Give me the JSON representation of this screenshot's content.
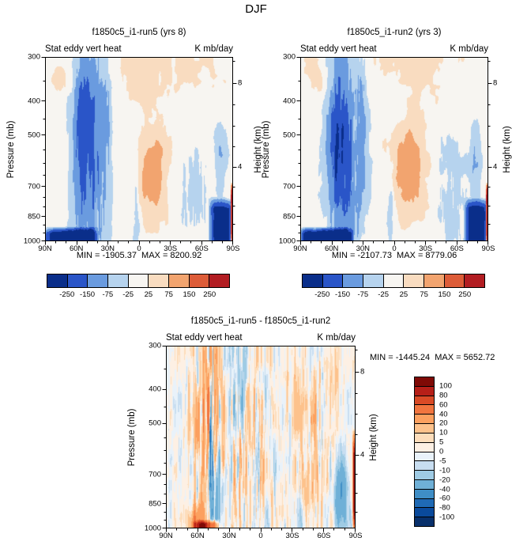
{
  "title": "DJF",
  "chart_data": [
    {
      "type": "heatmap",
      "id": "run5",
      "title": "f1850c5_i1-run5 (yrs 8)",
      "field_label": "Stat eddy vert heat",
      "units_label": "K mb/day",
      "stats": "MIN = -1905.37  MAX = 8200.92",
      "min": -1905.37,
      "max": 8200.92,
      "x_tick_labels": [
        "90N",
        "60N",
        "30N",
        "0",
        "30S",
        "60S",
        "90S"
      ],
      "x_range_deg": [
        90,
        -90
      ],
      "x_major_step_deg": 30,
      "x_minor_step_deg": 10,
      "ylabel": "Pressure (mb)",
      "y_scale": "log",
      "y_range_mb": [
        300,
        1000
      ],
      "y_ticks_mb": [
        300,
        400,
        500,
        700,
        850,
        1000
      ],
      "y_minor_mb": [
        350,
        450,
        550,
        600,
        650,
        750,
        800,
        900,
        950
      ],
      "y2label": "Height (km)",
      "y2_ticks_km": [
        8,
        4
      ],
      "y2_minor_km": [
        1,
        2,
        3,
        5,
        6,
        7,
        9
      ],
      "colorbar": {
        "orientation": "horizontal",
        "levels": [
          -250,
          -150,
          -75,
          -25,
          25,
          75,
          150,
          250
        ],
        "labels": [
          "-250",
          "-150",
          "-75",
          "-25",
          "25",
          "75",
          "150",
          "250"
        ],
        "colors": [
          "#0a2e8a",
          "#2a55c8",
          "#6a9bdf",
          "#b6d3ee",
          "#f7f5f1",
          "#f9dcc0",
          "#f2a46f",
          "#dd5c38",
          "#b21d22"
        ]
      },
      "seed": 3.7,
      "amp_scale": 1.0,
      "features": [
        {
          "type": "noise",
          "amp": 26,
          "sx": 6,
          "sy": 4,
          "bias": 5
        },
        {
          "type": "noise",
          "amp": 13,
          "sx": 26,
          "sy": 12
        },
        {
          "type": "gauss",
          "lat": 47,
          "latw": 17,
          "y": 0.55,
          "yw": 0.62,
          "amp": -165,
          "sf": 85,
          "mix": 0.75
        },
        {
          "type": "gauss",
          "lat": 54,
          "latw": 8,
          "y": 0.42,
          "yw": 0.35,
          "amp": -125,
          "sf": 60,
          "mix": 0.6
        },
        {
          "type": "gauss",
          "lat": 31,
          "latw": 6,
          "y": 0.3,
          "yw": 0.5,
          "amp": -50,
          "sf": 95,
          "mix": 0.85
        },
        {
          "type": "band",
          "lat0": 38,
          "lat1": 92,
          "y0": 0.92,
          "y1": 1.06,
          "amp": -380,
          "latsoft": 8,
          "ysoft": 0.04,
          "sf": 40
        },
        {
          "type": "gauss",
          "lat": -13,
          "latw": 15,
          "y": 0.64,
          "yw": 0.24,
          "amp": 122,
          "sf": 35,
          "mix": 0.35
        },
        {
          "type": "gauss",
          "lat": -5,
          "latw": 50,
          "y": 0.03,
          "yw": 0.18,
          "amp": 34,
          "sf": 25,
          "mix": 0.3
        },
        {
          "type": "gauss",
          "lat": 76,
          "latw": 13,
          "y": 0.1,
          "yw": 0.15,
          "amp": 42,
          "sf": 30,
          "mix": 0.3
        },
        {
          "type": "gauss",
          "lat": 3,
          "latw": 5,
          "y": 0.8,
          "yw": 0.3,
          "amp": -65,
          "sf": 70,
          "mix": 0.7
        },
        {
          "type": "gauss",
          "lat": -55,
          "latw": 15,
          "y": 0.75,
          "yw": 0.35,
          "amp": -58,
          "sf": 80,
          "mix": 0.7
        },
        {
          "type": "gauss",
          "lat": -78,
          "latw": 6,
          "y": 0.6,
          "yw": 0.25,
          "amp": -85,
          "sf": 50,
          "mix": 0.5
        },
        {
          "type": "band",
          "lat0": -92,
          "lat1": -66,
          "y0": 0.76,
          "y1": 1.06,
          "amp": -270,
          "latsoft": 6,
          "ysoft": 0.06
        },
        {
          "type": "band",
          "lat0": -91,
          "lat1": -87.5,
          "y0": 0.68,
          "y1": 1.06,
          "amp": 820,
          "latsoft": 1.5,
          "ysoft": 0.1
        }
      ]
    },
    {
      "type": "heatmap",
      "id": "run2",
      "title": "f1850c5_i1-run2 (yrs 3)",
      "field_label": "Stat eddy vert heat",
      "units_label": "K mb/day",
      "stats": "MIN = -2107.73  MAX = 8779.06",
      "min": -2107.73,
      "max": 8779.06,
      "x_tick_labels": [
        "90N",
        "60N",
        "30N",
        "0",
        "30S",
        "60S",
        "90S"
      ],
      "x_range_deg": [
        90,
        -90
      ],
      "x_major_step_deg": 30,
      "x_minor_step_deg": 10,
      "ylabel": "Pressure (mb)",
      "y_scale": "log",
      "y_range_mb": [
        300,
        1000
      ],
      "y_ticks_mb": [
        300,
        400,
        500,
        700,
        850,
        1000
      ],
      "y_minor_mb": [
        350,
        450,
        550,
        600,
        650,
        750,
        800,
        900,
        950
      ],
      "y2label": "Height (km)",
      "y2_ticks_km": [
        8,
        4
      ],
      "y2_minor_km": [
        1,
        2,
        3,
        5,
        6,
        7,
        9
      ],
      "colorbar": {
        "orientation": "horizontal",
        "levels": [
          -250,
          -150,
          -75,
          -25,
          25,
          75,
          150,
          250
        ],
        "labels": [
          "-250",
          "-150",
          "-75",
          "-25",
          "25",
          "75",
          "150",
          "250"
        ],
        "colors": [
          "#0a2e8a",
          "#2a55c8",
          "#6a9bdf",
          "#b6d3ee",
          "#f7f5f1",
          "#f9dcc0",
          "#f2a46f",
          "#dd5c38",
          "#b21d22"
        ]
      },
      "seed": 9.2,
      "amp_scale": 1.06,
      "features": [
        {
          "type": "noise",
          "amp": 26,
          "sx": 6,
          "sy": 4,
          "bias": 5
        },
        {
          "type": "noise",
          "amp": 13,
          "sx": 26,
          "sy": 12
        },
        {
          "type": "gauss",
          "lat": 47,
          "latw": 17,
          "y": 0.55,
          "yw": 0.62,
          "amp": -165,
          "sf": 85,
          "mix": 0.75
        },
        {
          "type": "gauss",
          "lat": 54,
          "latw": 8,
          "y": 0.42,
          "yw": 0.35,
          "amp": -125,
          "sf": 60,
          "mix": 0.6
        },
        {
          "type": "gauss",
          "lat": 31,
          "latw": 6,
          "y": 0.3,
          "yw": 0.5,
          "amp": -50,
          "sf": 95,
          "mix": 0.85
        },
        {
          "type": "band",
          "lat0": 38,
          "lat1": 92,
          "y0": 0.92,
          "y1": 1.06,
          "amp": -380,
          "latsoft": 8,
          "ysoft": 0.04,
          "sf": 40
        },
        {
          "type": "gauss",
          "lat": -13,
          "latw": 15,
          "y": 0.64,
          "yw": 0.24,
          "amp": 122,
          "sf": 35,
          "mix": 0.35
        },
        {
          "type": "gauss",
          "lat": -5,
          "latw": 50,
          "y": 0.03,
          "yw": 0.18,
          "amp": 34,
          "sf": 25,
          "mix": 0.3
        },
        {
          "type": "gauss",
          "lat": 76,
          "latw": 13,
          "y": 0.1,
          "yw": 0.15,
          "amp": 42,
          "sf": 30,
          "mix": 0.3
        },
        {
          "type": "gauss",
          "lat": 3,
          "latw": 5,
          "y": 0.8,
          "yw": 0.3,
          "amp": -65,
          "sf": 70,
          "mix": 0.7
        },
        {
          "type": "gauss",
          "lat": -55,
          "latw": 15,
          "y": 0.75,
          "yw": 0.35,
          "amp": -58,
          "sf": 80,
          "mix": 0.7
        },
        {
          "type": "gauss",
          "lat": -78,
          "latw": 6,
          "y": 0.6,
          "yw": 0.25,
          "amp": -85,
          "sf": 50,
          "mix": 0.5
        },
        {
          "type": "band",
          "lat0": -92,
          "lat1": -66,
          "y0": 0.76,
          "y1": 1.06,
          "amp": -270,
          "latsoft": 6,
          "ysoft": 0.06
        },
        {
          "type": "band",
          "lat0": -91,
          "lat1": -87.5,
          "y0": 0.68,
          "y1": 1.06,
          "amp": 820,
          "latsoft": 1.5,
          "ysoft": 0.1
        }
      ]
    },
    {
      "type": "heatmap",
      "id": "diff",
      "title": "f1850c5_i1-run5 - f1850c5_i1-run2",
      "field_label": "Stat eddy vert heat",
      "units_label": "K mb/day",
      "stats": "MIN = -1445.24  MAX = 5652.72",
      "min": -1445.24,
      "max": 5652.72,
      "x_tick_labels": [
        "90N",
        "60N",
        "30N",
        "0",
        "30S",
        "60S",
        "90S"
      ],
      "x_range_deg": [
        90,
        -90
      ],
      "x_major_step_deg": 30,
      "x_minor_step_deg": 10,
      "ylabel": "Pressure (mb)",
      "y_scale": "log",
      "y_range_mb": [
        300,
        1000
      ],
      "y_ticks_mb": [
        300,
        400,
        500,
        700,
        850,
        1000
      ],
      "y_minor_mb": [
        350,
        450,
        550,
        600,
        650,
        750,
        800,
        900,
        950
      ],
      "y2label": "Height (km)",
      "y2_ticks_km": [
        8,
        4
      ],
      "y2_minor_km": [
        1,
        2,
        3,
        5,
        6,
        7,
        9
      ],
      "colorbar": {
        "orientation": "vertical",
        "levels": [
          -100,
          -80,
          -60,
          -40,
          -20,
          -10,
          -5,
          0,
          5,
          10,
          20,
          40,
          60,
          80,
          100
        ],
        "labels": [
          "100",
          "80",
          "60",
          "40",
          "20",
          "10",
          "5",
          "0",
          "-5",
          "-10",
          "-20",
          "-40",
          "-60",
          "-80",
          "-100"
        ],
        "colors": [
          "#08306b",
          "#0a4a9c",
          "#1f6ab5",
          "#3f8ec6",
          "#6fb0d7",
          "#9fcbe4",
          "#c8def1",
          "#e9f2fa",
          "#fdf0e4",
          "#fdddbb",
          "#fdc28c",
          "#fca05f",
          "#f1753f",
          "#d94a26",
          "#b61f18",
          "#7f0a06"
        ]
      },
      "seed": 5.5,
      "amp_scale": 1.0,
      "features": [
        {
          "type": "noise",
          "amp": 6,
          "sx": 8,
          "sy": 5,
          "bias": 1
        },
        {
          "type": "anis",
          "amp": 13,
          "fx": 75,
          "fy": 3,
          "lat": 0,
          "latw": 120,
          "y": 0.5,
          "yw": 1.3
        },
        {
          "type": "anis",
          "amp": 58,
          "fx": 85,
          "fy": 2.5,
          "lat": 48,
          "latw": 13,
          "y": 0.5,
          "yw": 0.65
        },
        {
          "type": "anis",
          "amp": 28,
          "fx": 92,
          "fy": 3,
          "lat": 20,
          "latw": 9,
          "y": 0.5,
          "yw": 0.6
        },
        {
          "type": "anis",
          "amp": 26,
          "fx": 90,
          "fy": 3,
          "lat": 3,
          "latw": 8,
          "y": 0.6,
          "yw": 0.45,
          "bias": 10
        },
        {
          "type": "anis",
          "amp": 20,
          "fx": 85,
          "fy": 3,
          "lat": -50,
          "latw": 20,
          "y": 0.6,
          "yw": 0.5,
          "bias": 3
        },
        {
          "type": "band",
          "lat0": 38,
          "lat1": 66,
          "y0": 0.95,
          "y1": 1.06,
          "amp": 85,
          "latsoft": 8,
          "ysoft": 0.025,
          "sf": 45
        },
        {
          "type": "band",
          "lat0": -91,
          "lat1": -87,
          "y0": 0.45,
          "y1": 1.06,
          "amp": 115,
          "latsoft": 1.5,
          "ysoft": 0.15
        },
        {
          "type": "gauss",
          "lat": -76,
          "latw": 7,
          "y": 0.85,
          "yw": 0.22,
          "amp": -48,
          "sf": 55,
          "mix": 0.5
        },
        {
          "type": "gauss",
          "lat": 60,
          "latw": 10,
          "y": 0.97,
          "yw": 0.1,
          "amp": 38,
          "sf": 40,
          "mix": 0.4
        }
      ]
    }
  ]
}
